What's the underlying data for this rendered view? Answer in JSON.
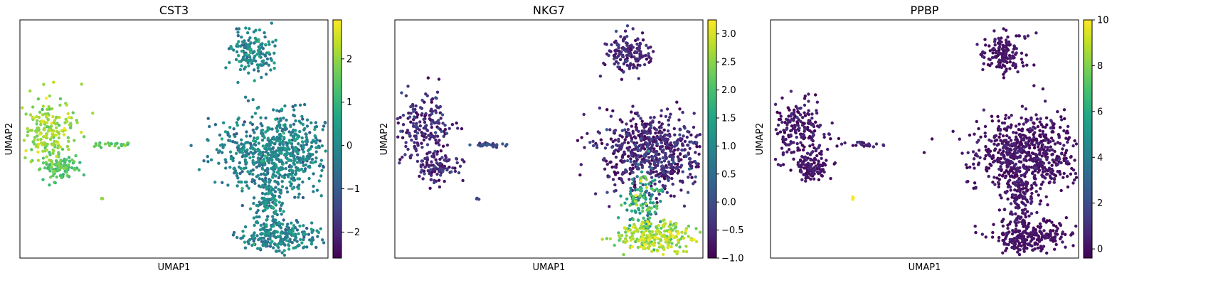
{
  "chart_data": [
    {
      "type": "scatter",
      "title": "CST3",
      "xlabel": "UMAP1",
      "ylabel": "UMAP2",
      "colorbar": {
        "min": -2.6,
        "max": 2.9,
        "ticks": [
          -2,
          -1,
          0,
          1,
          2
        ],
        "tick_labels": [
          "−2",
          "−1",
          "0",
          "1",
          "2"
        ]
      },
      "colormap": "viridis",
      "seed": 11,
      "clusters": [
        {
          "name": "top cluster",
          "cx": 9.6,
          "cy": 9.6,
          "sx": 0.45,
          "sy": 0.45,
          "n": 150,
          "mean": -0.2,
          "sd": 0.45
        },
        {
          "name": "left upper cluster",
          "cx": 0.9,
          "cy": 6.3,
          "sx": 0.6,
          "sy": 0.65,
          "n": 200,
          "mean": 2.0,
          "sd": 0.35
        },
        {
          "name": "left lower cluster",
          "cx": 1.45,
          "cy": 4.7,
          "sx": 0.4,
          "sy": 0.3,
          "n": 100,
          "mean": 1.3,
          "sd": 0.3
        },
        {
          "name": "left streak",
          "cx": 3.7,
          "cy": 5.65,
          "sx": 0.45,
          "sy": 0.05,
          "n": 25,
          "mean": 1.5,
          "sd": 0.3
        },
        {
          "name": "left outlier",
          "cx": 3.2,
          "cy": 3.35,
          "sx": 0.03,
          "sy": 0.03,
          "n": 4,
          "mean": 1.8,
          "sd": 0.2
        },
        {
          "name": "large right cluster",
          "cx": 10.6,
          "cy": 5.3,
          "sx": 1.2,
          "sy": 0.85,
          "n": 650,
          "mean": -0.2,
          "sd": 0.45
        },
        {
          "name": "right tail",
          "cx": 10.3,
          "cy": 3.3,
          "sx": 0.35,
          "sy": 0.7,
          "n": 130,
          "mean": -0.1,
          "sd": 0.45
        },
        {
          "name": "right bottom cluster",
          "cx": 10.8,
          "cy": 1.7,
          "sx": 0.85,
          "sy": 0.35,
          "n": 230,
          "mean": -0.2,
          "sd": 0.45
        }
      ]
    },
    {
      "type": "scatter",
      "title": "NKG7",
      "xlabel": "UMAP1",
      "ylabel": "UMAP2",
      "colorbar": {
        "min": -1.0,
        "max": 3.25,
        "ticks": [
          -1.0,
          -0.5,
          0.0,
          0.5,
          1.0,
          1.5,
          2.0,
          2.5,
          3.0
        ],
        "tick_labels": [
          "−1.0",
          "−0.5",
          "0.0",
          "0.5",
          "1.0",
          "1.5",
          "2.0",
          "2.5",
          "3.0"
        ]
      },
      "colormap": "viridis",
      "seed": 23,
      "clusters": [
        {
          "name": "top cluster",
          "cx": 9.6,
          "cy": 9.6,
          "sx": 0.45,
          "sy": 0.45,
          "n": 150,
          "mean": -0.65,
          "sd": 0.25
        },
        {
          "name": "left upper cluster",
          "cx": 0.9,
          "cy": 6.3,
          "sx": 0.6,
          "sy": 0.65,
          "n": 200,
          "mean": -0.6,
          "sd": 0.3
        },
        {
          "name": "left lower cluster",
          "cx": 1.45,
          "cy": 4.7,
          "sx": 0.4,
          "sy": 0.3,
          "n": 100,
          "mean": -0.6,
          "sd": 0.3
        },
        {
          "name": "left streak",
          "cx": 3.7,
          "cy": 5.65,
          "sx": 0.45,
          "sy": 0.05,
          "n": 25,
          "mean": -0.2,
          "sd": 0.3
        },
        {
          "name": "left outlier",
          "cx": 3.2,
          "cy": 3.35,
          "sx": 0.03,
          "sy": 0.03,
          "n": 4,
          "mean": -0.3,
          "sd": 0.2
        },
        {
          "name": "large right cluster",
          "cx": 10.6,
          "cy": 5.3,
          "sx": 1.2,
          "sy": 0.85,
          "n": 650,
          "mean": -0.6,
          "sd": 0.3
        },
        {
          "name": "right tail",
          "cx": 10.3,
          "cy": 3.3,
          "sx": 0.35,
          "sy": 0.7,
          "n": 130,
          "mean": 1.5,
          "sd": 0.6
        },
        {
          "name": "right bottom cluster",
          "cx": 10.8,
          "cy": 1.7,
          "sx": 0.85,
          "sy": 0.35,
          "n": 230,
          "mean": 2.6,
          "sd": 0.35
        }
      ]
    },
    {
      "type": "scatter",
      "title": "PPBP",
      "xlabel": "UMAP1",
      "ylabel": "UMAP2",
      "colorbar": {
        "min": -0.4,
        "max": 10.0,
        "ticks": [
          0,
          2,
          4,
          6,
          8,
          10
        ],
        "tick_labels": [
          "0",
          "2",
          "4",
          "6",
          "8",
          "10"
        ]
      },
      "colormap": "viridis",
      "seed": 37,
      "clusters": [
        {
          "name": "top cluster",
          "cx": 9.6,
          "cy": 9.6,
          "sx": 0.45,
          "sy": 0.45,
          "n": 150,
          "mean": 0.1,
          "sd": 0.3
        },
        {
          "name": "left upper cluster",
          "cx": 0.9,
          "cy": 6.3,
          "sx": 0.6,
          "sy": 0.65,
          "n": 200,
          "mean": 0.2,
          "sd": 0.45
        },
        {
          "name": "left lower cluster",
          "cx": 1.45,
          "cy": 4.7,
          "sx": 0.4,
          "sy": 0.3,
          "n": 100,
          "mean": 0.1,
          "sd": 0.3
        },
        {
          "name": "left streak",
          "cx": 3.7,
          "cy": 5.65,
          "sx": 0.45,
          "sy": 0.05,
          "n": 25,
          "mean": 0.5,
          "sd": 0.5
        },
        {
          "name": "left outlier",
          "cx": 3.2,
          "cy": 3.35,
          "sx": 0.03,
          "sy": 0.03,
          "n": 4,
          "mean": 9.8,
          "sd": 0.2
        },
        {
          "name": "large right cluster",
          "cx": 10.6,
          "cy": 5.3,
          "sx": 1.2,
          "sy": 0.85,
          "n": 650,
          "mean": 0.1,
          "sd": 0.35
        },
        {
          "name": "right tail",
          "cx": 10.3,
          "cy": 3.3,
          "sx": 0.35,
          "sy": 0.7,
          "n": 130,
          "mean": 0.1,
          "sd": 0.3
        },
        {
          "name": "right bottom cluster",
          "cx": 10.8,
          "cy": 1.7,
          "sx": 0.85,
          "sy": 0.35,
          "n": 230,
          "mean": 0.05,
          "sd": 0.2
        }
      ]
    }
  ]
}
